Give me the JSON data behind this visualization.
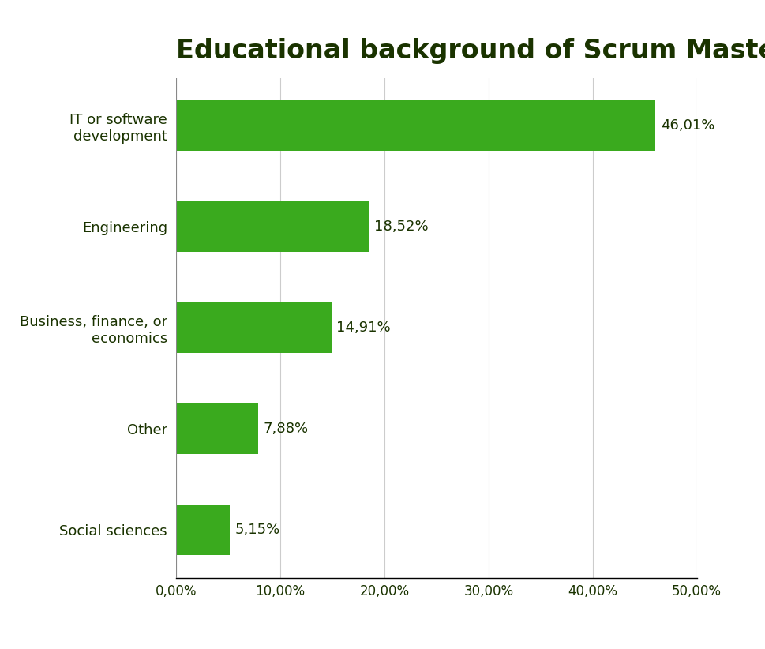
{
  "title": "Educational background of Scrum Masters",
  "categories": [
    "IT or software\ndevelopment",
    "Engineering",
    "Business, finance, or\neconomics",
    "Other",
    "Social sciences"
  ],
  "values": [
    46.01,
    18.52,
    14.91,
    7.88,
    5.15
  ],
  "labels": [
    "46,01%",
    "18,52%",
    "14,91%",
    "7,88%",
    "5,15%"
  ],
  "bar_color": "#3aaa1e",
  "background_color": "#ffffff",
  "title_color": "#1a3300",
  "label_color": "#1a3300",
  "tick_color": "#1a3300",
  "xlim": [
    0,
    50
  ],
  "xtick_values": [
    0,
    10,
    20,
    30,
    40,
    50
  ],
  "xtick_labels": [
    "0,00%",
    "10,00%",
    "20,00%",
    "30,00%",
    "40,00%",
    "50,00%"
  ],
  "title_fontsize": 24,
  "label_fontsize": 13,
  "tick_fontsize": 12,
  "ytick_fontsize": 13,
  "bar_height": 0.5,
  "figsize": [
    9.7,
    8.22
  ],
  "dpi": 100
}
